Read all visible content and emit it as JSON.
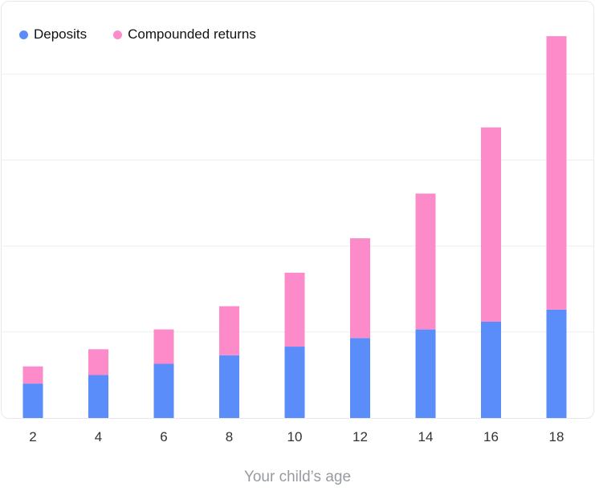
{
  "colors": {
    "deposits": "#5a8dfa",
    "compounded_returns": "#fd8bca",
    "grid": "#eceff2",
    "tick_text": "#2f3337",
    "axis_title": "#969ba2"
  },
  "legend": {
    "deposits": "Deposits",
    "compounded_returns": "Compounded returns"
  },
  "chart_data": {
    "type": "bar",
    "stacked": true,
    "x": [
      2,
      4,
      6,
      8,
      10,
      12,
      14,
      16,
      18
    ],
    "categories": [
      "2",
      "4",
      "6",
      "8",
      "10",
      "12",
      "14",
      "16",
      "18"
    ],
    "xlabel": "Your child’s age",
    "ylabel": "",
    "ylim": [
      0,
      4600
    ],
    "grid": true,
    "legend_position": "top-left",
    "series": [
      {
        "name": "Deposits",
        "values": [
          400,
          500,
          630,
          730,
          830,
          930,
          1030,
          1120,
          1260
        ]
      },
      {
        "name": "Compounded returns",
        "values": [
          200,
          300,
          400,
          570,
          860,
          1160,
          1580,
          2260,
          3180
        ]
      }
    ]
  }
}
